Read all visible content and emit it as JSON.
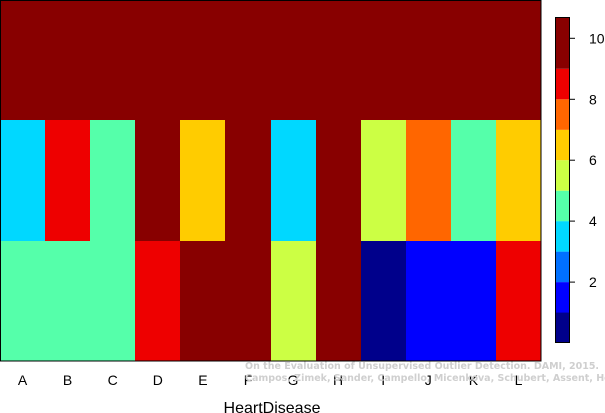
{
  "chart_data": {
    "type": "heatmap",
    "title": "",
    "xlabel": "HeartDisease",
    "ylabel": "",
    "x_categories": [
      "A",
      "B",
      "C",
      "D",
      "E",
      "F",
      "G",
      "H",
      "I",
      "J",
      "K",
      "L"
    ],
    "rows_top_to_bottom": [
      [
        10,
        10,
        10,
        10,
        10,
        10,
        10,
        10,
        10,
        10,
        10,
        10
      ],
      [
        4,
        9,
        5,
        10,
        7,
        10,
        4,
        10,
        6,
        8,
        5,
        7
      ],
      [
        5,
        5,
        5,
        9,
        10,
        10,
        6,
        10,
        1,
        2,
        2,
        9
      ]
    ],
    "colorbar": {
      "range": [
        0,
        10.7
      ],
      "ticks": [
        2,
        4,
        6,
        8,
        10
      ],
      "bins": [
        {
          "from": 0.0,
          "to": 1.0,
          "color": "#00008B"
        },
        {
          "from": 1.0,
          "to": 2.0,
          "color": "#0000FF"
        },
        {
          "from": 2.0,
          "to": 3.0,
          "color": "#0070FF"
        },
        {
          "from": 3.0,
          "to": 4.0,
          "color": "#00D8FF"
        },
        {
          "from": 4.0,
          "to": 5.0,
          "color": "#55FFAA"
        },
        {
          "from": 5.0,
          "to": 6.0,
          "color": "#CCFF44"
        },
        {
          "from": 6.0,
          "to": 7.0,
          "color": "#FFCC00"
        },
        {
          "from": 7.0,
          "to": 8.0,
          "color": "#FF6600"
        },
        {
          "from": 8.0,
          "to": 9.0,
          "color": "#EE0000"
        },
        {
          "from": 9.0,
          "to": 10.7,
          "color": "#880000"
        }
      ]
    },
    "grid": false,
    "legend": "colorbar-right"
  },
  "watermark": {
    "line1": "On the Evaluation of Unsupervised Outlier Detection. DAMI, 2015.",
    "line2": "Campos, Zimek, Sander, Campello, Micenkova, Schubert, Assent, Houle"
  }
}
